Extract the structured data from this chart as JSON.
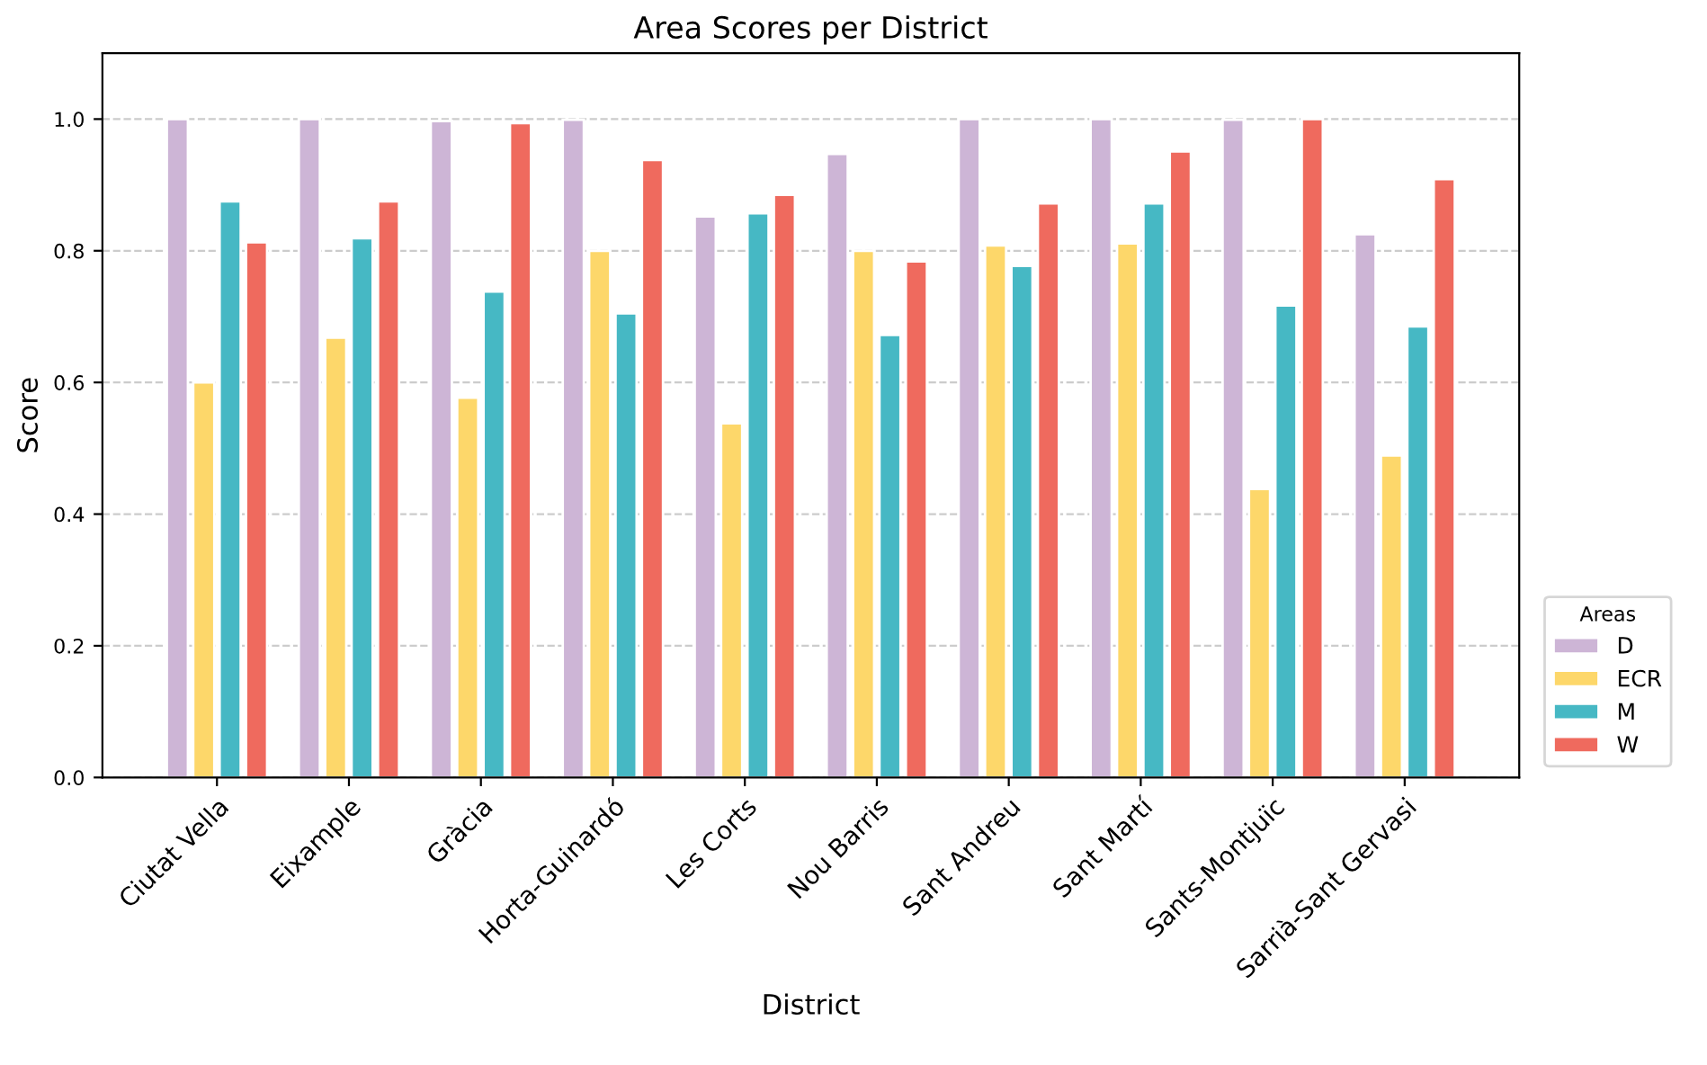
{
  "chart_data": {
    "type": "bar",
    "title": "Area Scores per District",
    "xlabel": "District",
    "ylabel": "Score",
    "legend_title": "Areas",
    "categories": [
      "Ciutat Vella",
      "Eixample",
      "Gràcia",
      "Horta-Guinardó",
      "Les Corts",
      "Nou Barris",
      "Sant Andreu",
      "Sant Martí",
      "Sants-Montjuïc",
      "Sarrià-Sant Gervasi"
    ],
    "series": [
      {
        "name": "D",
        "color": "#cdb5d6",
        "values": [
          1.0,
          1.0,
          0.997,
          0.999,
          0.852,
          0.947,
          1.0,
          1.0,
          0.999,
          0.825
        ]
      },
      {
        "name": "ECR",
        "color": "#fdd76a",
        "values": [
          0.6,
          0.668,
          0.577,
          0.8,
          0.538,
          0.8,
          0.808,
          0.811,
          0.438,
          0.489
        ]
      },
      {
        "name": "M",
        "color": "#46b8c4",
        "values": [
          0.875,
          0.819,
          0.738,
          0.705,
          0.857,
          0.672,
          0.777,
          0.872,
          0.717,
          0.685
        ]
      },
      {
        "name": "W",
        "color": "#ef6a5e",
        "values": [
          0.813,
          0.875,
          0.994,
          0.938,
          0.885,
          0.784,
          0.872,
          0.951,
          1.0,
          0.909
        ]
      }
    ],
    "ylim": [
      0,
      1.1
    ],
    "yticks": [
      {
        "value": 0,
        "label": "0.0"
      },
      {
        "value": 0.2,
        "label": "0.2"
      },
      {
        "value": 0.4,
        "label": "0.4"
      },
      {
        "value": 0.6,
        "label": "0.6"
      },
      {
        "value": 0.8,
        "label": "0.8"
      },
      {
        "value": 1.0,
        "label": "1.0"
      }
    ],
    "grid": "y",
    "legend": "bottom right"
  }
}
